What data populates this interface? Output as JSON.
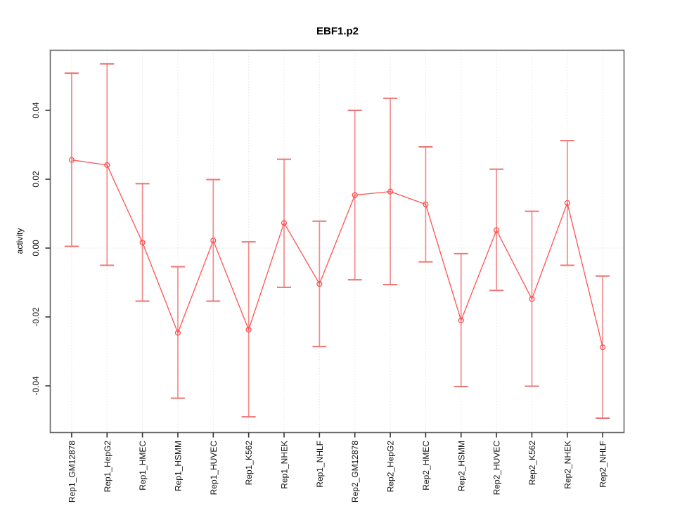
{
  "chart_data": {
    "type": "line",
    "title": "EBF1.p2",
    "xlabel": "",
    "ylabel": "activity",
    "legend": "none",
    "grid": "vertical dotted gridline at every category; dotted horizontal line at y=0",
    "ylim": [
      -0.0535,
      0.0576
    ],
    "y_tick_values": [
      0.04,
      0.02,
      0.0,
      -0.02,
      -0.04
    ],
    "categories": [
      "Rep1_GM12878",
      "Rep1_HepG2",
      "Rep1_HMEC",
      "Rep1_HSMM",
      "Rep1_HUVEC",
      "Rep1_K562",
      "Rep1_NHEK",
      "Rep1_NHLF",
      "Rep2_GM12878",
      "Rep2_HepG2",
      "Rep2_HMEC",
      "Rep2_HSMM",
      "Rep2_HUVEC",
      "Rep2_K562",
      "Rep2_NHEK",
      "Rep2_NHLF"
    ],
    "series": [
      {
        "name": "activity",
        "values": [
          0.0256,
          0.0241,
          0.0016,
          -0.0246,
          0.0022,
          -0.0237,
          0.0073,
          -0.0104,
          0.0154,
          0.0164,
          0.0127,
          -0.021,
          0.0052,
          -0.0148,
          0.0131,
          -0.0288
        ],
        "upper": [
          0.0508,
          0.0535,
          0.0187,
          -0.0054,
          0.0199,
          0.0018,
          0.0258,
          0.0078,
          0.04,
          0.0435,
          0.0294,
          -0.0016,
          0.0229,
          0.0107,
          0.0312,
          -0.0081
        ],
        "lower": [
          0.0005,
          -0.005,
          -0.0154,
          -0.0436,
          -0.0154,
          -0.049,
          -0.0114,
          -0.0286,
          -0.0092,
          -0.0106,
          -0.004,
          -0.0402,
          -0.0123,
          -0.0401,
          -0.005,
          -0.0494
        ]
      }
    ],
    "colors": {
      "series_line": "#ff5252",
      "marker_stroke": "#ff4d4d",
      "error_bar": "#f28c8c",
      "error_cap": "#ef7373",
      "gridline": "#d8d8d8",
      "zero_line": "#d8d8d8",
      "plot_border": "#666666",
      "tick": "#333333",
      "text": "#000000"
    }
  }
}
